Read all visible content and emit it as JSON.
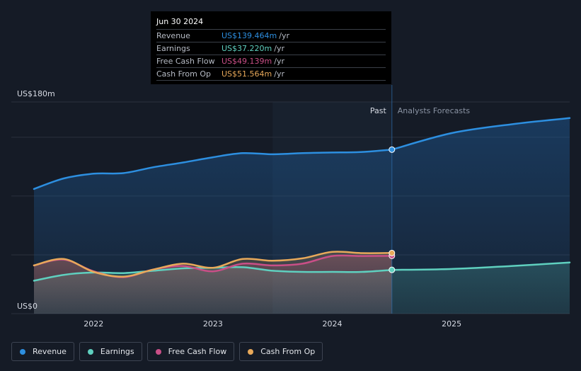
{
  "chart_data": {
    "type": "line",
    "x_unit": "year",
    "xlim": [
      2021.5,
      2025.99
    ],
    "ylim": [
      0,
      180
    ],
    "y_axis_labels": {
      "top": "US$180m",
      "bottom": "US$0"
    },
    "x_ticks": [
      {
        "value": 2022,
        "label": "2022"
      },
      {
        "value": 2023,
        "label": "2023"
      },
      {
        "value": 2024,
        "label": "2024"
      },
      {
        "value": 2025,
        "label": "2025"
      }
    ],
    "gridlines": [
      0,
      50,
      100,
      150,
      180
    ],
    "past_label": "Past",
    "forecast_label": "Analysts Forecasts",
    "divider_x": 2024.5,
    "shade_start_x": 2023.5,
    "series": [
      {
        "name": "Revenue",
        "color": "#2d8fe0",
        "past": [
          [
            2021.5,
            106
          ],
          [
            2021.75,
            115
          ],
          [
            2022,
            119
          ],
          [
            2022.25,
            119.5
          ],
          [
            2022.5,
            124.5
          ],
          [
            2022.75,
            128.5
          ],
          [
            2023,
            133
          ],
          [
            2023.25,
            136.5
          ],
          [
            2023.5,
            135.5
          ],
          [
            2023.75,
            136.5
          ],
          [
            2024,
            137
          ],
          [
            2024.25,
            137.5
          ],
          [
            2024.5,
            139.464
          ]
        ],
        "forecast": [
          [
            2024.5,
            139.464
          ],
          [
            2025,
            153.5
          ],
          [
            2025.5,
            161
          ],
          [
            2025.99,
            166.3
          ]
        ]
      },
      {
        "name": "Earnings",
        "color": "#5fd0bf",
        "past": [
          [
            2021.5,
            28
          ],
          [
            2021.75,
            33
          ],
          [
            2022,
            35
          ],
          [
            2022.25,
            34.5
          ],
          [
            2022.5,
            36.5
          ],
          [
            2022.75,
            38.5
          ],
          [
            2023,
            39
          ],
          [
            2023.25,
            39.5
          ],
          [
            2023.5,
            36.5
          ],
          [
            2023.75,
            35.5
          ],
          [
            2024,
            35.5
          ],
          [
            2024.25,
            35.5
          ],
          [
            2024.5,
            37.22
          ]
        ],
        "forecast": [
          [
            2024.5,
            37.22
          ],
          [
            2025,
            38
          ],
          [
            2025.5,
            40.5
          ],
          [
            2025.99,
            43.5
          ]
        ]
      },
      {
        "name": "Free Cash Flow",
        "color": "#c94f87",
        "past": [
          [
            2021.5,
            41
          ],
          [
            2021.75,
            46
          ],
          [
            2022,
            36
          ],
          [
            2022.25,
            31
          ],
          [
            2022.5,
            37.5
          ],
          [
            2022.75,
            40.5
          ],
          [
            2023,
            36
          ],
          [
            2023.25,
            42.5
          ],
          [
            2023.5,
            41
          ],
          [
            2023.75,
            42.5
          ],
          [
            2024,
            49
          ],
          [
            2024.25,
            49
          ],
          [
            2024.5,
            49.139
          ]
        ],
        "forecast": []
      },
      {
        "name": "Cash From Op",
        "color": "#e8a95a",
        "past": [
          [
            2021.5,
            41
          ],
          [
            2021.75,
            46.5
          ],
          [
            2022,
            35.5
          ],
          [
            2022.25,
            31.5
          ],
          [
            2022.5,
            37.5
          ],
          [
            2022.75,
            42.5
          ],
          [
            2023,
            39
          ],
          [
            2023.25,
            46.5
          ],
          [
            2023.5,
            45
          ],
          [
            2023.75,
            47
          ],
          [
            2024,
            52.5
          ],
          [
            2024.25,
            51.5
          ],
          [
            2024.5,
            51.564
          ]
        ],
        "forecast": []
      }
    ]
  },
  "tooltip": {
    "date": "Jun 30 2024",
    "rows": [
      {
        "label": "Revenue",
        "value": "US$139.464m",
        "unit": "/yr",
        "color": "#2d8fe0"
      },
      {
        "label": "Earnings",
        "value": "US$37.220m",
        "unit": "/yr",
        "color": "#5fd0bf"
      },
      {
        "label": "Free Cash Flow",
        "value": "US$49.139m",
        "unit": "/yr",
        "color": "#c94f87"
      },
      {
        "label": "Cash From Op",
        "value": "US$51.564m",
        "unit": "/yr",
        "color": "#e8a95a"
      }
    ]
  },
  "legend": [
    {
      "label": "Revenue",
      "color": "#2d8fe0"
    },
    {
      "label": "Earnings",
      "color": "#5fd0bf"
    },
    {
      "label": "Free Cash Flow",
      "color": "#c94f87"
    },
    {
      "label": "Cash From Op",
      "color": "#e8a95a"
    }
  ]
}
